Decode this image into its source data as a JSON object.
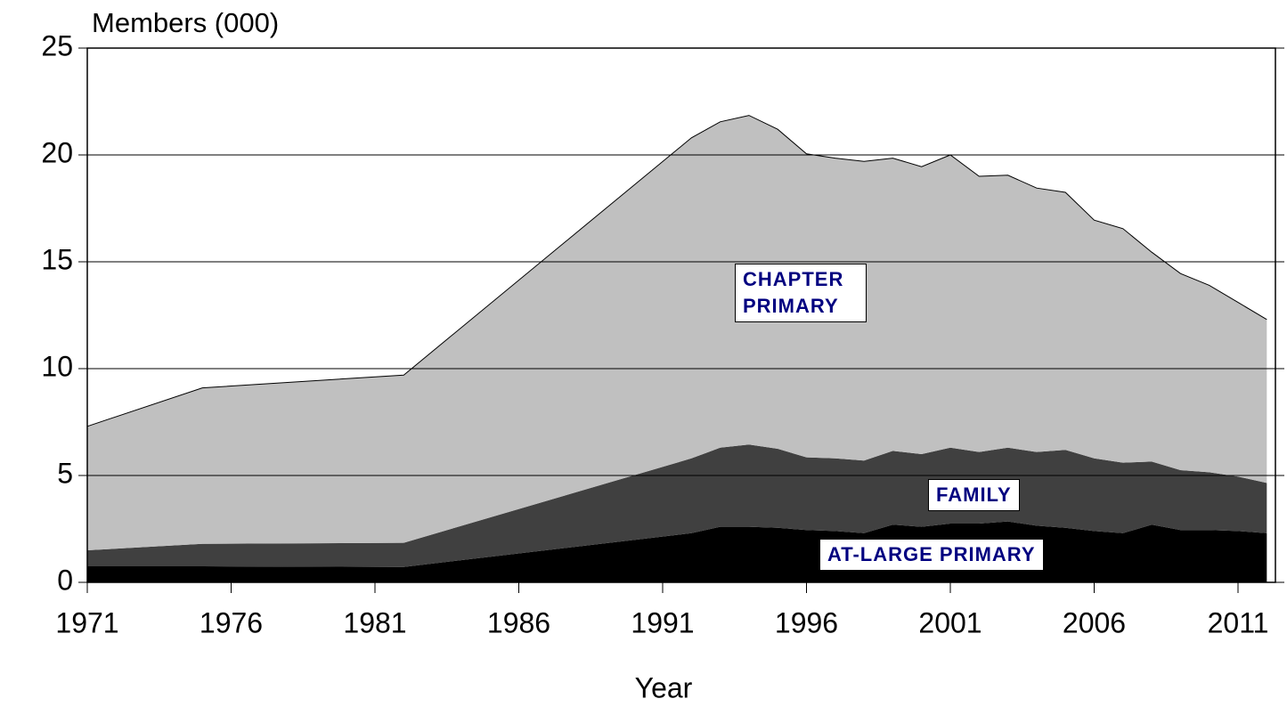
{
  "chart_data": {
    "type": "stacked_area",
    "title": "Members (000)",
    "x_label": "Year",
    "x": [
      1971,
      1975,
      1982,
      1992,
      1993,
      1994,
      1995,
      1996,
      1997,
      1998,
      1999,
      2000,
      2001,
      2002,
      2003,
      2004,
      2005,
      2006,
      2007,
      2008,
      2009,
      2010,
      2011,
      2012
    ],
    "series": [
      {
        "name": "AT-LARGE PRIMARY",
        "color": "#000000",
        "values": [
          0.75,
          0.75,
          0.72,
          2.3,
          2.6,
          2.6,
          2.55,
          2.45,
          2.4,
          2.3,
          2.7,
          2.6,
          2.75,
          2.75,
          2.85,
          2.65,
          2.55,
          2.4,
          2.3,
          2.7,
          2.45,
          2.45,
          2.4,
          2.3
        ]
      },
      {
        "name": "FAMILY",
        "color": "#404040",
        "values": [
          0.75,
          1.05,
          1.13,
          3.5,
          3.7,
          3.85,
          3.7,
          3.4,
          3.4,
          3.4,
          3.45,
          3.4,
          3.55,
          3.35,
          3.45,
          3.45,
          3.65,
          3.4,
          3.3,
          2.95,
          2.8,
          2.7,
          2.55,
          2.35
        ]
      },
      {
        "name": "CHAPTER PRIMARY",
        "color": "#c0c0c0",
        "values": [
          5.8,
          7.3,
          7.85,
          15.0,
          15.25,
          15.4,
          14.95,
          14.2,
          14.05,
          14.0,
          13.7,
          13.45,
          13.7,
          12.9,
          12.75,
          12.35,
          12.05,
          11.15,
          10.95,
          9.8,
          9.2,
          8.75,
          8.15,
          7.65
        ]
      }
    ],
    "xlim": [
      1971,
      2012.3
    ],
    "xticks": [
      1971,
      1976,
      1981,
      1986,
      1991,
      1996,
      2001,
      2006,
      2011
    ],
    "ylim": [
      0,
      25
    ],
    "yticks": [
      0,
      5,
      10,
      15,
      20,
      25
    ],
    "grid": true
  }
}
